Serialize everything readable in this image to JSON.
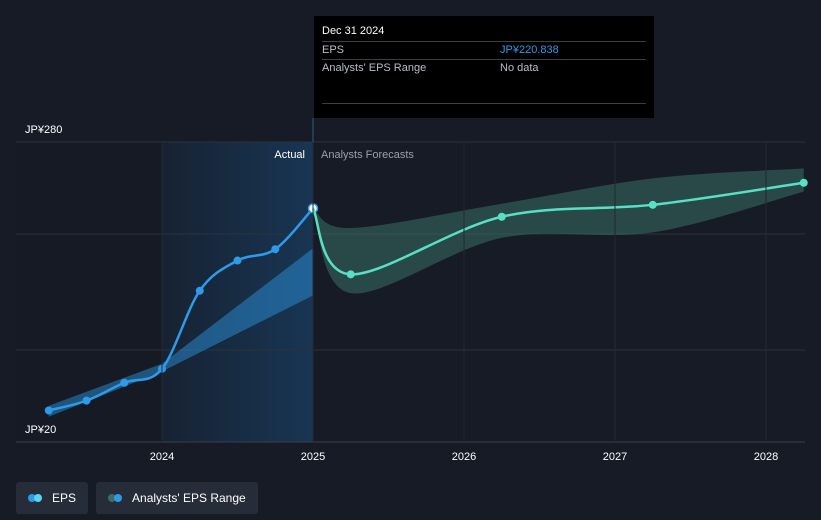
{
  "chart_data": {
    "type": "line",
    "y_axis": {
      "ticks": [
        "JP¥280",
        "JP¥20"
      ],
      "range": [
        20,
        280
      ]
    },
    "x_axis": {
      "ticks": [
        "2024",
        "2025",
        "2026",
        "2027",
        "2028"
      ],
      "range": [
        2023.2,
        2028.25
      ]
    },
    "region_labels": {
      "actual": "Actual",
      "forecast": "Analysts Forecasts"
    },
    "series": [
      {
        "name": "EPS",
        "color": "#2d9bea",
        "points": [
          [
            2023.25,
            37.7
          ],
          [
            2023.5,
            46.6
          ],
          [
            2023.75,
            62.8
          ],
          [
            2024.0,
            75.4
          ],
          [
            2024.25,
            146.2
          ],
          [
            2024.5,
            173.5
          ],
          [
            2024.75,
            183.8
          ],
          [
            2025.0,
            220.8
          ]
        ]
      },
      {
        "name": "EPS forecast",
        "color": "#58e0c4",
        "points": [
          [
            2025.0,
            220.8
          ],
          [
            2025.25,
            161.0
          ],
          [
            2026.25,
            213.2
          ],
          [
            2027.25,
            224.0
          ],
          [
            2028.25,
            244.0
          ]
        ]
      }
    ],
    "ranges": [
      {
        "name": "Analysts' EPS Range",
        "color": "#2d9bea",
        "upper": [
          [
            2023.25,
            42
          ],
          [
            2024.0,
            80
          ],
          [
            2025.0,
            184.6
          ]
        ],
        "lower": [
          [
            2023.25,
            32
          ],
          [
            2024.0,
            73
          ],
          [
            2025.0,
            141.9
          ]
        ]
      },
      {
        "name": "Analysts' EPS Range forecast",
        "color": "#3b6e64",
        "upper": [
          [
            2025.0,
            220.8
          ],
          [
            2025.25,
            203.0
          ],
          [
            2026.25,
            225.0
          ],
          [
            2027.25,
            248.0
          ],
          [
            2028.25,
            257.0
          ]
        ],
        "lower": [
          [
            2025.0,
            220.8
          ],
          [
            2025.25,
            144.0
          ],
          [
            2026.25,
            194.0
          ],
          [
            2027.25,
            199.0
          ],
          [
            2028.25,
            236.0
          ]
        ]
      }
    ],
    "highlight": {
      "x": 2025.0
    }
  },
  "tooltip": {
    "date": "Dec 31 2024",
    "eps_label": "EPS",
    "eps_value": "JP¥220.838",
    "range_label": "Analysts' EPS Range",
    "range_value": "No data"
  },
  "legend": {
    "eps": "EPS",
    "range": "Analysts' EPS Range",
    "eps_colors": [
      "#2d9bea",
      "#5ad6f5"
    ],
    "range_colors": [
      "#3b6e64",
      "#2d9bea"
    ]
  }
}
